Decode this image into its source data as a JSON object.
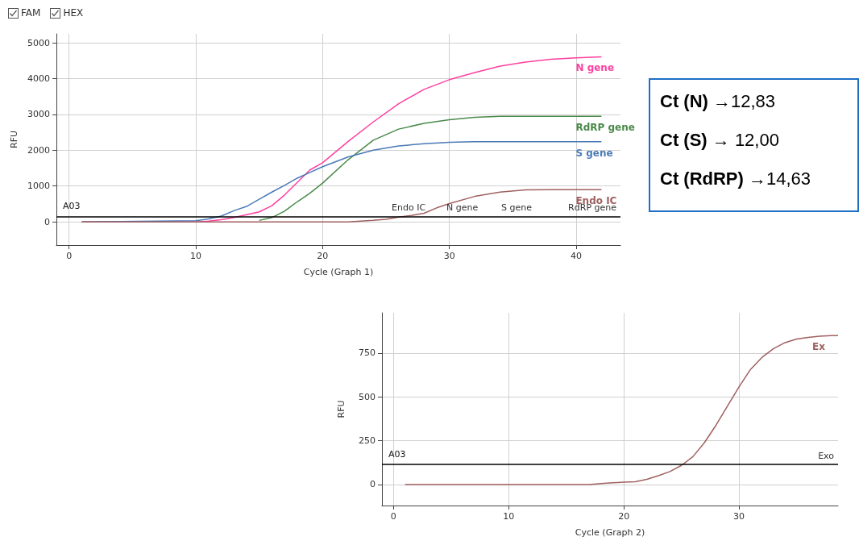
{
  "chart_data": [
    {
      "type": "line",
      "xlabel": "Cycle (Graph 1)",
      "ylabel": "RFU",
      "xlim": [
        -1,
        43.5
      ],
      "ylim": [
        -650,
        5250
      ],
      "xticks": [
        0,
        10,
        20,
        30,
        40
      ],
      "yticks": [
        0,
        1000,
        2000,
        3000,
        4000,
        5000
      ],
      "grid": true,
      "marker": "none",
      "annotations": [
        "FAM",
        "HEX",
        "A03",
        {
          "text": "S gene",
          "y": 150
        },
        {
          "text": "N gene",
          "y": 150
        },
        {
          "text": "Endo IC",
          "y": 150
        }
      ],
      "ref_lines": [
        {
          "axis": "y",
          "value": 150,
          "label": "RdRP gene",
          "color": "#000000"
        }
      ],
      "series": [
        {
          "name": "N gene",
          "color": "#ff3fa0",
          "x": [
            1,
            10,
            11,
            12,
            13,
            14,
            15,
            16,
            17,
            18,
            19,
            20,
            22,
            24,
            26,
            28,
            30,
            32,
            34,
            36,
            38,
            40,
            42
          ],
          "values": [
            0,
            0,
            20,
            60,
            120,
            200,
            280,
            450,
            750,
            1100,
            1450,
            1650,
            2240,
            2790,
            3300,
            3700,
            3970,
            4170,
            4350,
            4460,
            4540,
            4580,
            4610
          ]
        },
        {
          "name": "RdRP gene",
          "color": "#4a8a4a",
          "x": [
            15,
            16,
            17,
            18,
            19,
            20,
            22,
            24,
            26,
            28,
            30,
            32,
            34,
            42
          ],
          "values": [
            40,
            120,
            300,
            560,
            800,
            1080,
            1730,
            2280,
            2590,
            2750,
            2850,
            2920,
            2950,
            2950
          ]
        },
        {
          "name": "S gene",
          "color": "#4a7ab8",
          "x": [
            1,
            10,
            11,
            12,
            13,
            14,
            15,
            16,
            17,
            18,
            19,
            20,
            22,
            24,
            26,
            28,
            30,
            32,
            42
          ],
          "values": [
            0,
            30,
            80,
            160,
            310,
            430,
            630,
            830,
            1020,
            1220,
            1380,
            1540,
            1810,
            2000,
            2120,
            2180,
            2220,
            2240,
            2240
          ]
        },
        {
          "name": "Endo IC",
          "color": "#a06060",
          "x": [
            1,
            22,
            24,
            25,
            26,
            27,
            28,
            29,
            30,
            32,
            34,
            36,
            38,
            42
          ],
          "values": [
            0,
            0,
            40,
            70,
            130,
            180,
            240,
            390,
            510,
            710,
            830,
            890,
            900,
            900
          ]
        }
      ]
    },
    {
      "type": "line",
      "xlabel": "Cycle (Graph 2)",
      "ylabel": "RFU",
      "xlim": [
        -1,
        38.6
      ],
      "ylim": [
        -120,
        980
      ],
      "xticks": [
        0,
        10,
        20,
        30
      ],
      "yticks": [
        0,
        250,
        500,
        750
      ],
      "grid": true,
      "marker": "none",
      "annotations": [
        "A03"
      ],
      "ref_lines": [
        {
          "axis": "y",
          "value": 115,
          "label": "Exo",
          "color": "#000000"
        }
      ],
      "series": [
        {
          "name": "Ex",
          "color": "#a06060",
          "x": [
            1,
            17,
            18,
            20,
            21,
            22,
            23,
            24,
            25,
            26,
            27,
            28,
            29,
            30,
            31,
            32,
            33,
            34,
            35,
            36,
            37,
            38,
            38.6
          ],
          "values": [
            0,
            0,
            5,
            14,
            16,
            30,
            50,
            74,
            109,
            159,
            239,
            338,
            448,
            557,
            657,
            726,
            776,
            810,
            830,
            840,
            846,
            850,
            850
          ]
        }
      ]
    },
    {
      "type": "other",
      "annotations": [
        "Ct (N) →12,83",
        "Ct (S) → 12,00",
        "Ct (RdRP) →14,63"
      ]
    }
  ]
}
